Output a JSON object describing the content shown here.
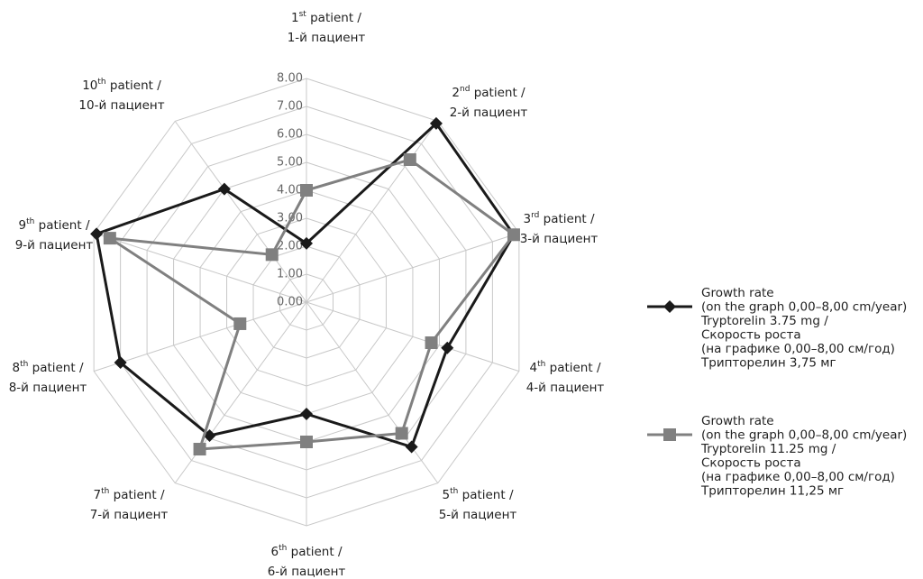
{
  "chart_data": {
    "type": "radar",
    "categories": [
      {
        "n": "1",
        "sup": "st",
        "en": " patient /",
        "ru": "1-й пациент"
      },
      {
        "n": "2",
        "sup": "nd",
        "en": " patient /",
        "ru": "2-й пациент"
      },
      {
        "n": "3",
        "sup": "rd",
        "en": " patient /",
        "ru": "3-й пациент"
      },
      {
        "n": "4",
        "sup": "th",
        "en": " patient /",
        "ru": "4-й пациент"
      },
      {
        "n": "5",
        "sup": "th",
        "en": " patient /",
        "ru": "5-й пациент"
      },
      {
        "n": "6",
        "sup": "th",
        "en": " patient /",
        "ru": "6-й пациент"
      },
      {
        "n": "7",
        "sup": "th",
        "en": " patient /",
        "ru": "7-й пациент"
      },
      {
        "n": "8",
        "sup": "th",
        "en": " patient /",
        "ru": "8-й пациент"
      },
      {
        "n": "9",
        "sup": "th",
        "en": " patient /",
        "ru": "9-й пациент"
      },
      {
        "n": "10",
        "sup": "th",
        "en": " patient /",
        "ru": "10-й пациент"
      }
    ],
    "series": [
      {
        "name": [
          "Growth rate",
          "(on the graph 0,00–8,00 cm/year)",
          "Tryptorelin 3.75 mg /",
          "Скорость роста",
          "(на графике 0,00–8,00 см/год)",
          "Трипторелин 3,75 мг"
        ],
        "color": "#1a1a1a",
        "marker": "diamond",
        "values": [
          2.1,
          7.9,
          7.8,
          5.3,
          6.4,
          4.0,
          5.9,
          7.0,
          7.9,
          5.0
        ]
      },
      {
        "name": [
          "Growth rate",
          "(on the graph 0,00–8,00 cm/year)",
          "Tryptorelin 11.25 mg /",
          "Скорость роста",
          "(на графике 0,00–8,00 см/год)",
          "Трипторелин 11,25 мг"
        ],
        "color": "#808080",
        "marker": "square",
        "values": [
          4.0,
          6.3,
          7.8,
          4.7,
          5.8,
          5.0,
          6.5,
          2.5,
          7.4,
          2.1
        ]
      }
    ],
    "ylim": [
      0,
      8
    ],
    "yticks": [
      {
        "value": 0,
        "label": "0.00"
      },
      {
        "value": 1,
        "label": "1.00"
      },
      {
        "value": 2,
        "label": "2.00"
      },
      {
        "value": 3,
        "label": "3.00"
      },
      {
        "value": 4,
        "label": "4.00"
      },
      {
        "value": 5,
        "label": "5.00"
      },
      {
        "value": 6,
        "label": "6.00"
      },
      {
        "value": 7,
        "label": "7.00"
      },
      {
        "value": 8,
        "label": "8.00"
      }
    ],
    "grid": true
  }
}
